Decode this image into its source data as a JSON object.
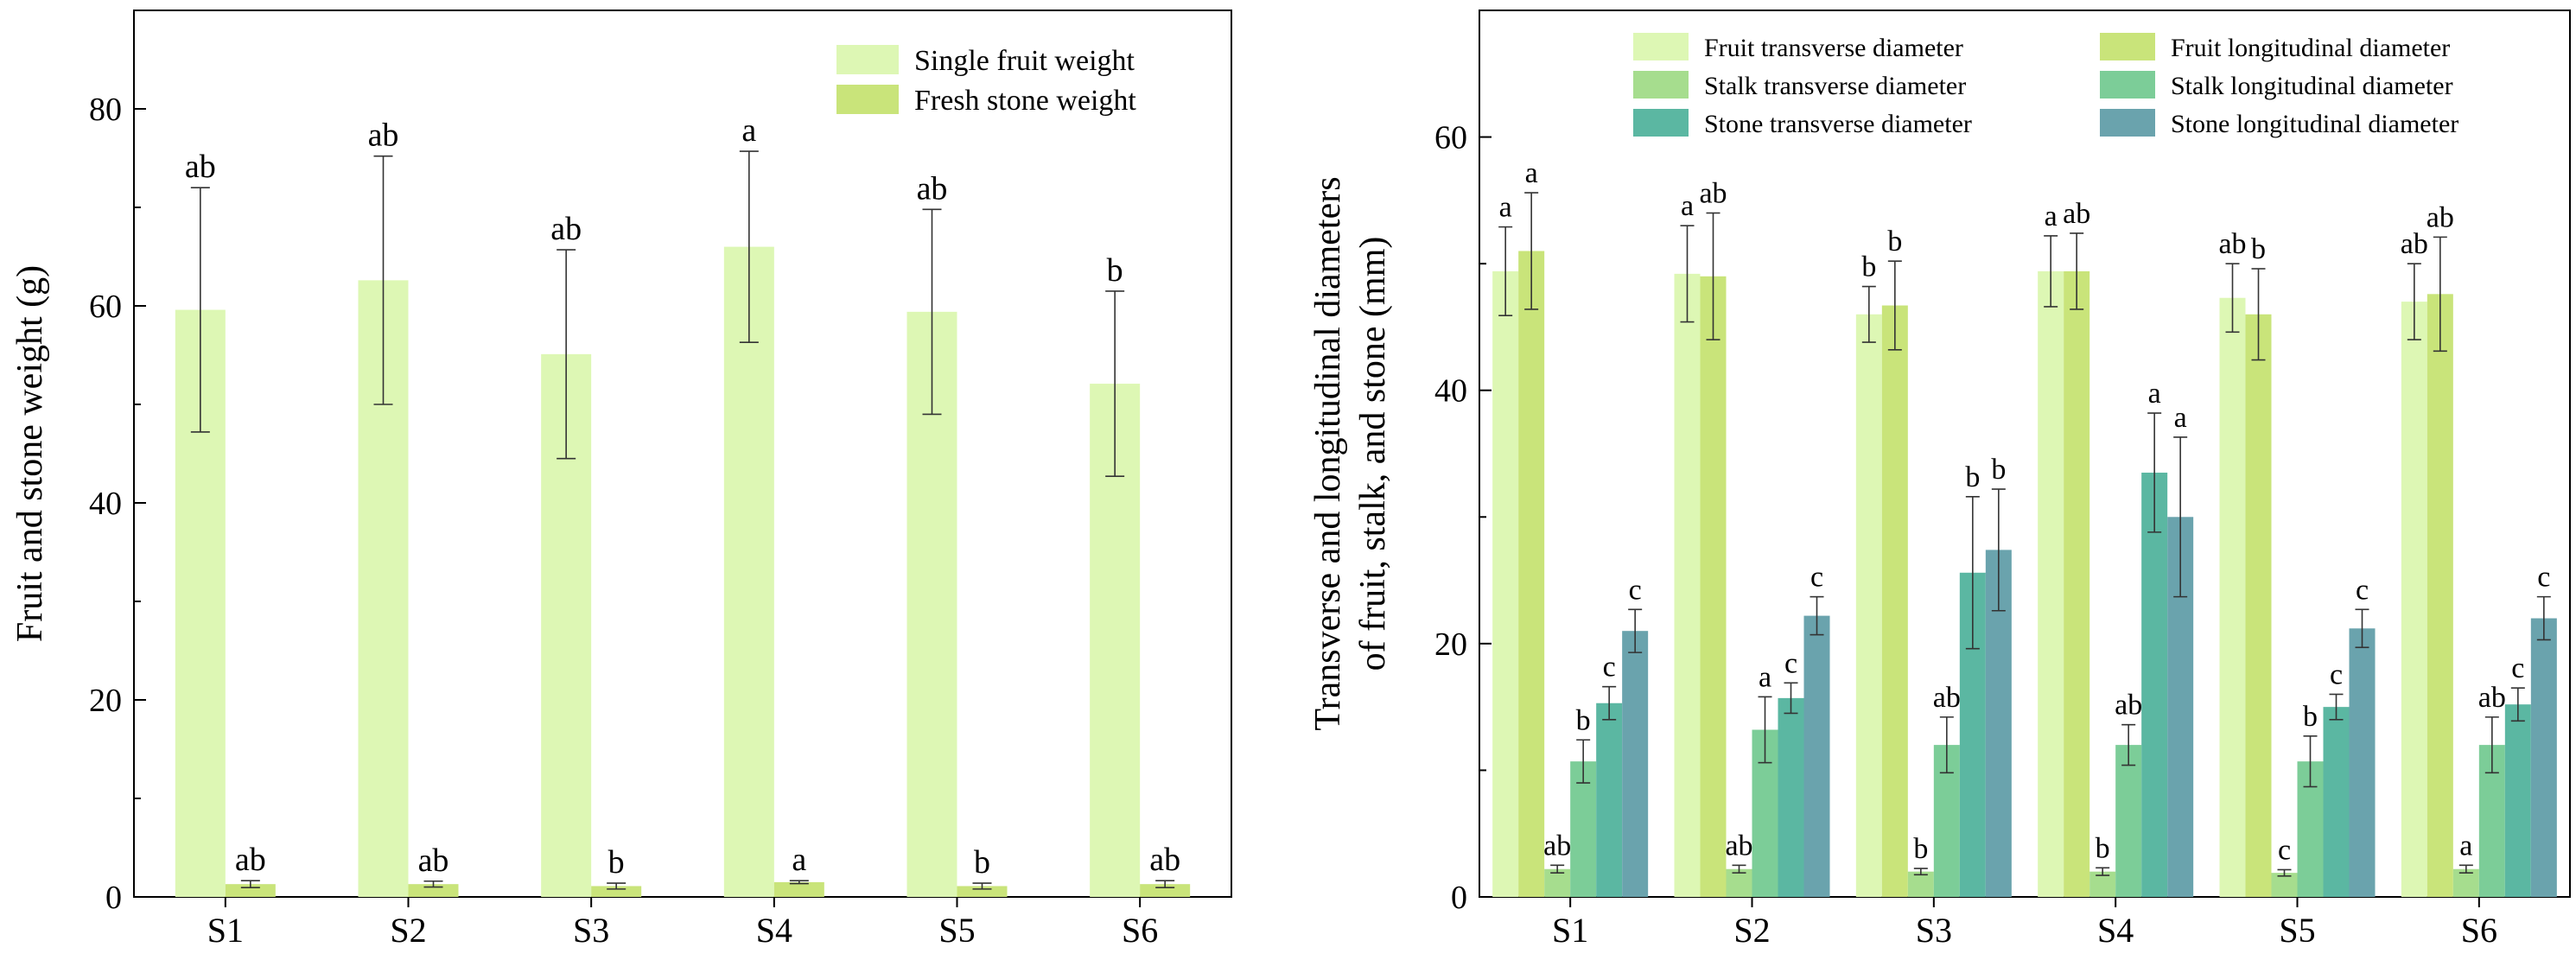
{
  "chart_data": [
    {
      "type": "bar",
      "categories": [
        "S1",
        "S2",
        "S3",
        "S4",
        "S5",
        "S6"
      ],
      "ylabel": "Fruit and stone weight (g)",
      "xlabel": "",
      "ylim": [
        0,
        90
      ],
      "yticks": [
        0,
        20,
        40,
        60,
        80
      ],
      "legend_position": "top-right",
      "series": [
        {
          "name": "Single fruit weight",
          "color": "#ddf7b4",
          "values": [
            59.6,
            62.6,
            55.1,
            66.0,
            59.4,
            52.1
          ],
          "errors": [
            12.4,
            12.6,
            10.6,
            9.7,
            10.4,
            9.4
          ],
          "letters": [
            "ab",
            "ab",
            "ab",
            "a",
            "ab",
            "b"
          ]
        },
        {
          "name": "Fresh stone weight",
          "color": "#c9e47a",
          "values": [
            1.3,
            1.3,
            1.1,
            1.5,
            1.1,
            1.3
          ],
          "errors": [
            0.35,
            0.3,
            0.3,
            0.15,
            0.3,
            0.35
          ],
          "letters": [
            "ab",
            "ab",
            "b",
            "a",
            "b",
            "ab"
          ]
        }
      ]
    },
    {
      "type": "bar",
      "categories": [
        "S1",
        "S2",
        "S3",
        "S4",
        "S5",
        "S6"
      ],
      "ylabel_line1": "Transverse and longitudinal diameters",
      "ylabel_line2": "of fruit, stalk, and stone (mm)",
      "xlabel": "",
      "ylim": [
        0,
        70
      ],
      "yticks": [
        0,
        20,
        40,
        60
      ],
      "legend_position": "top",
      "series": [
        {
          "name": "Fruit transverse diameter",
          "color": "#ddf7b4",
          "values": [
            49.4,
            49.2,
            46.0,
            49.4,
            47.3,
            47.0
          ],
          "errors": [
            3.5,
            3.8,
            2.2,
            2.8,
            2.7,
            3.0
          ],
          "letters": [
            "a",
            "a",
            "b",
            "a",
            "ab",
            "ab"
          ]
        },
        {
          "name": "Fruit longitudinal diameter",
          "color": "#c9e47a",
          "values": [
            51.0,
            49.0,
            46.7,
            49.4,
            46.0,
            47.6
          ],
          "errors": [
            4.6,
            5.0,
            3.5,
            3.0,
            3.6,
            4.5
          ],
          "letters": [
            "a",
            "ab",
            "b",
            "ab",
            "b",
            "ab"
          ]
        },
        {
          "name": "Stalk transverse diameter",
          "color": "#a6dd8e",
          "values": [
            2.2,
            2.2,
            2.0,
            2.0,
            1.9,
            2.2
          ],
          "errors": [
            0.3,
            0.3,
            0.25,
            0.3,
            0.25,
            0.3
          ],
          "letters": [
            "ab",
            "ab",
            "b",
            "b",
            "c",
            "a"
          ]
        },
        {
          "name": "Stalk longitudinal diameter",
          "color": "#7ccd98",
          "values": [
            10.7,
            13.2,
            12.0,
            12.0,
            10.7,
            12.0
          ],
          "errors": [
            1.7,
            2.6,
            2.2,
            1.6,
            2.0,
            2.2
          ],
          "letters": [
            "b",
            "a",
            "ab",
            "ab",
            "b",
            "ab"
          ]
        },
        {
          "name": "Stone transverse diameter",
          "color": "#5bb7a2",
          "values": [
            15.3,
            15.7,
            25.6,
            33.5,
            15.0,
            15.2
          ],
          "errors": [
            1.3,
            1.2,
            6.0,
            4.7,
            1.0,
            1.3
          ],
          "letters": [
            "c",
            "c",
            "b",
            "a",
            "c",
            "c"
          ]
        },
        {
          "name": "Stone longitudinal diameter",
          "color": "#6aa3ad",
          "values": [
            21.0,
            22.2,
            27.4,
            30.0,
            21.2,
            22.0
          ],
          "errors": [
            1.7,
            1.5,
            4.8,
            6.3,
            1.5,
            1.7
          ],
          "letters": [
            "c",
            "c",
            "b",
            "a",
            "c",
            "c"
          ]
        }
      ]
    }
  ]
}
